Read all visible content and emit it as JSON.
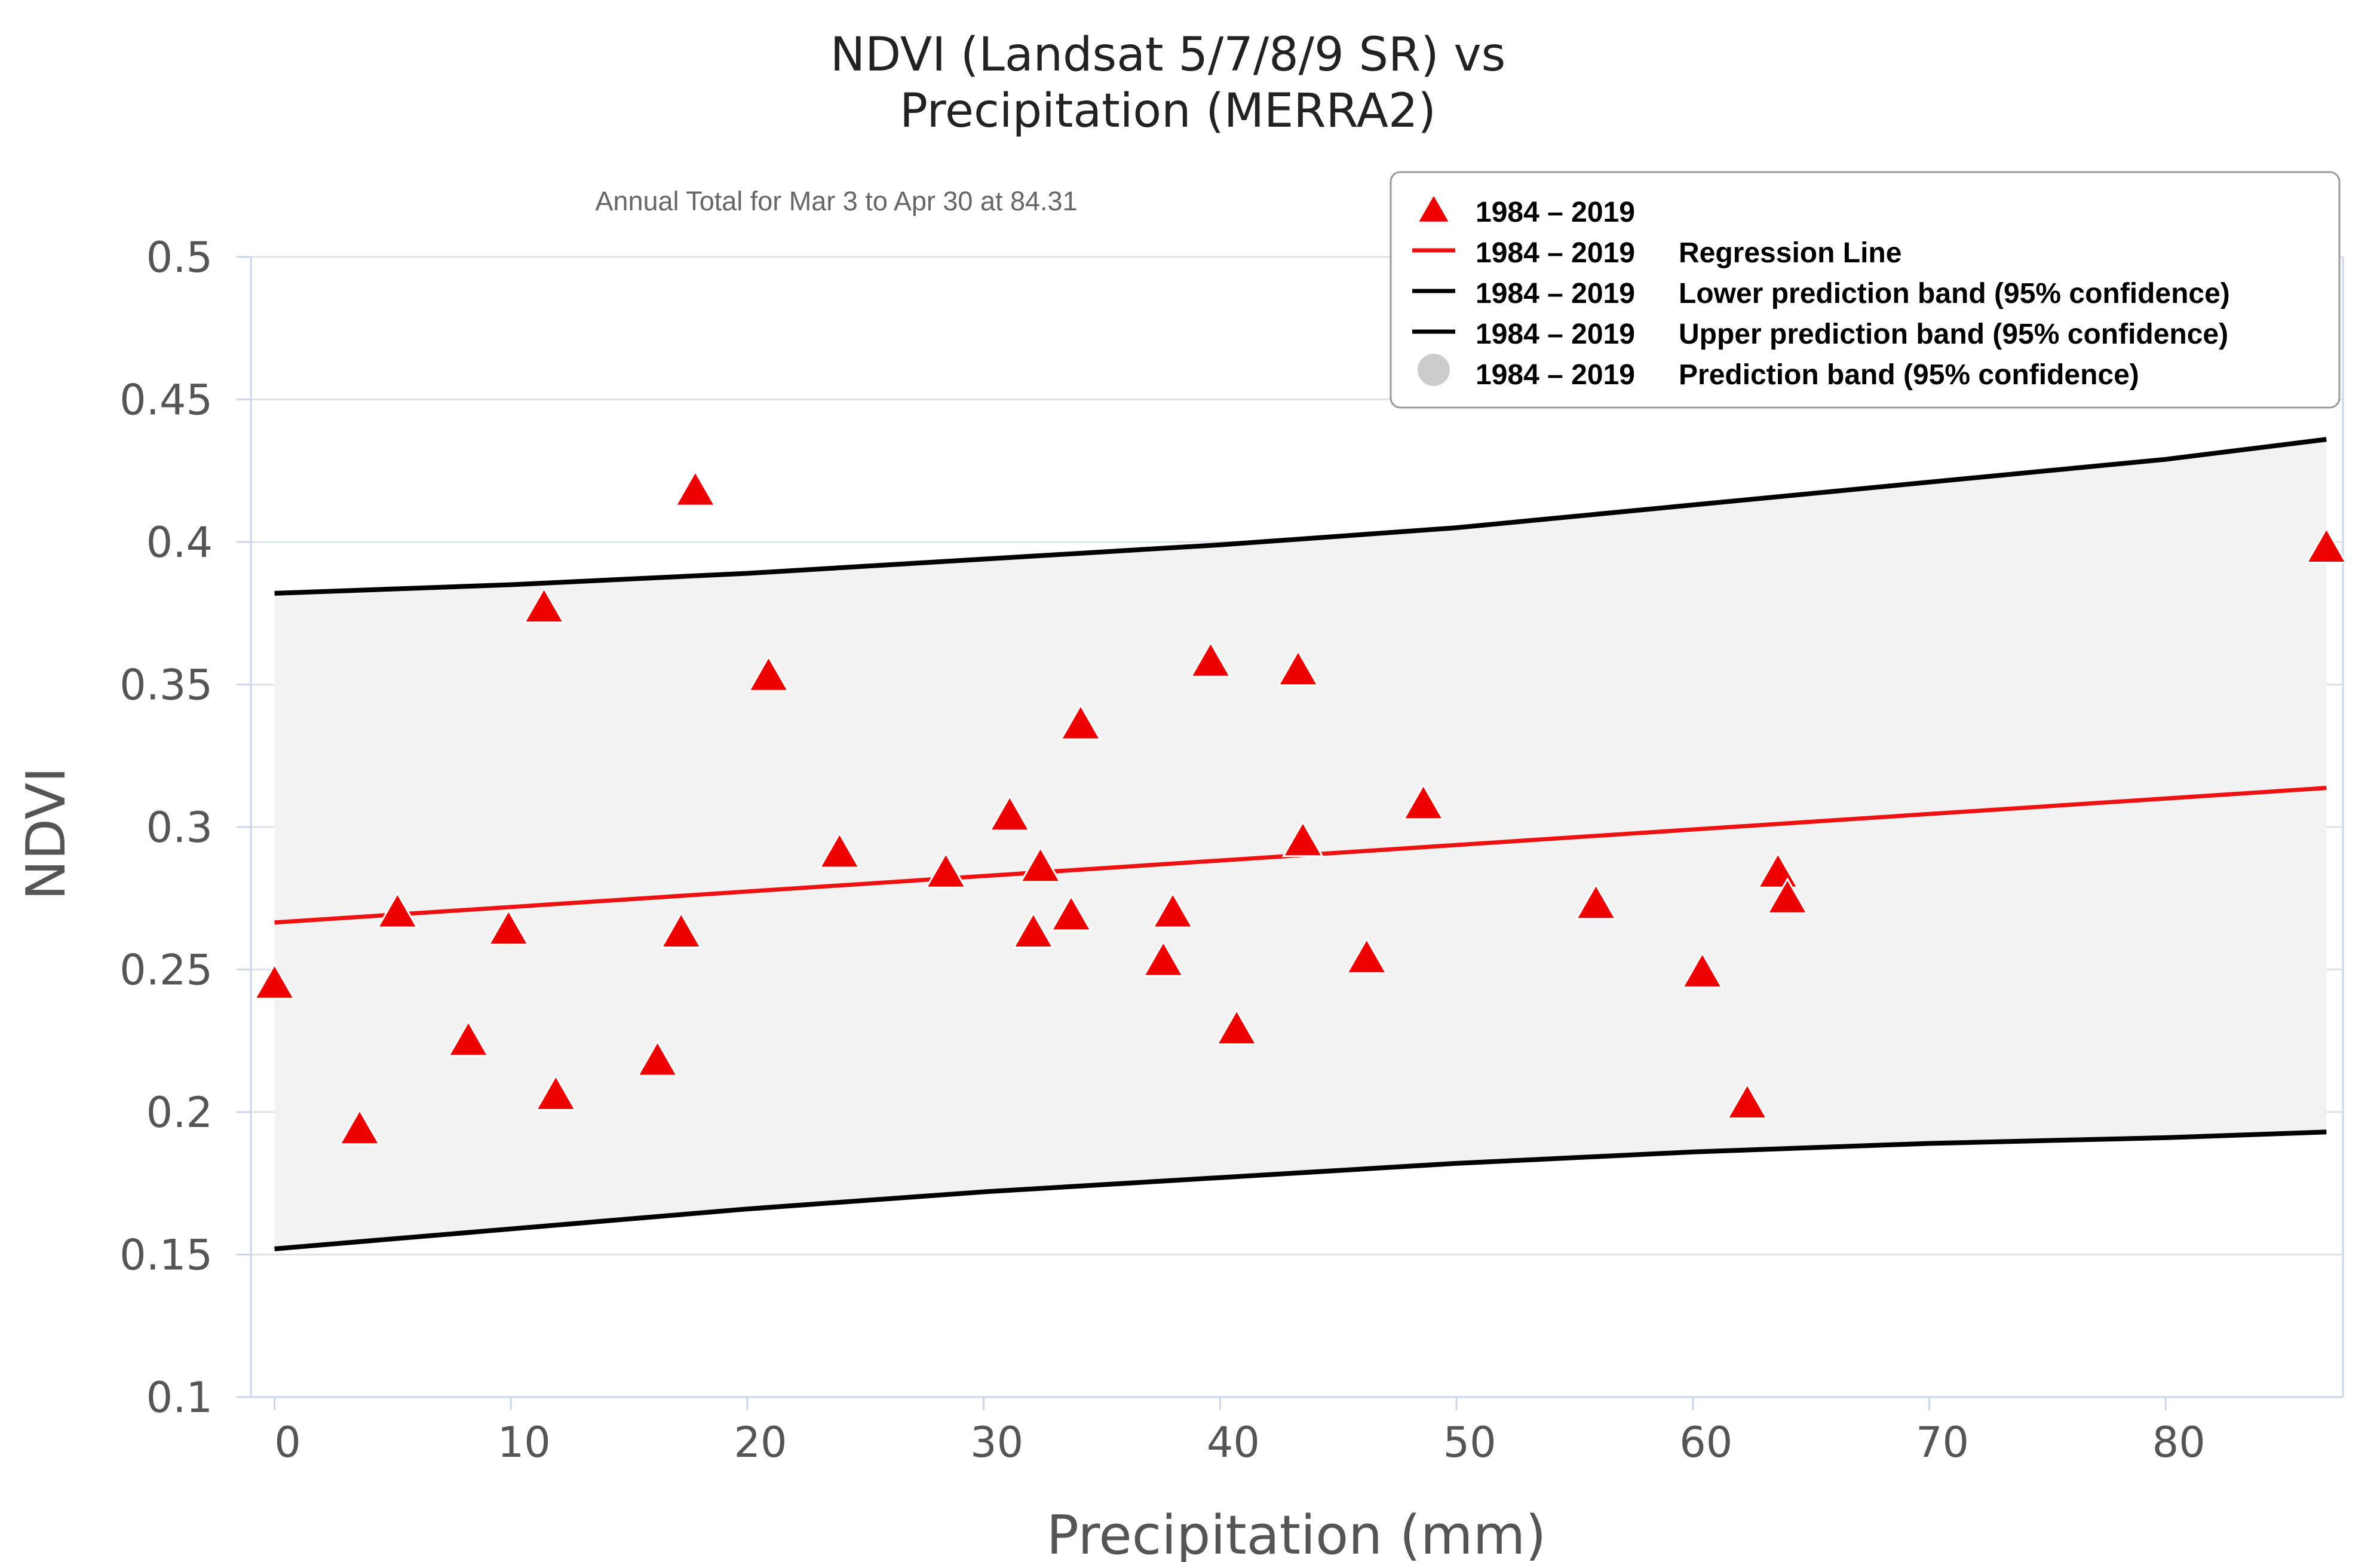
{
  "chart_data": {
    "type": "scatter",
    "title_lines": [
      "NDVI (Landsat 5/7/8/9 SR) vs",
      "Precipitation (MERRA2)"
    ],
    "subtitle": "Annual Total for Mar 3 to Apr 30 at 84.31",
    "xlabel": "Precipitation (mm)",
    "ylabel": "NDVI",
    "xlim": [
      -1,
      87.5
    ],
    "ylim": [
      0.1,
      0.5
    ],
    "x_ticks": [
      {
        "value": 0,
        "label": "0"
      },
      {
        "value": 10,
        "label": "10"
      },
      {
        "value": 20,
        "label": "20"
      },
      {
        "value": 30,
        "label": "30"
      },
      {
        "value": 40,
        "label": "40"
      },
      {
        "value": 50,
        "label": "50"
      },
      {
        "value": 60,
        "label": "60"
      },
      {
        "value": 70,
        "label": "70"
      },
      {
        "value": 80,
        "label": "80"
      }
    ],
    "y_ticks": [
      {
        "value": 0.1,
        "label": "0.1"
      },
      {
        "value": 0.15,
        "label": "0.15"
      },
      {
        "value": 0.2,
        "label": "0.2"
      },
      {
        "value": 0.25,
        "label": "0.25"
      },
      {
        "value": 0.3,
        "label": "0.3"
      },
      {
        "value": 0.35,
        "label": "0.35"
      },
      {
        "value": 0.4,
        "label": "0.4"
      },
      {
        "value": 0.45,
        "label": "0.45"
      },
      {
        "value": 0.5,
        "label": "0.5"
      }
    ],
    "grid": true,
    "colors": {
      "points": "#ee0000",
      "regression": "#ee1111",
      "bands": "#000000",
      "band_fill": "#f2f2f2",
      "band_legend": "#cccccc",
      "grid": "#dde3ea"
    },
    "points": [
      {
        "x": 0.0,
        "y": 0.245
      },
      {
        "x": 3.6,
        "y": 0.194
      },
      {
        "x": 5.2,
        "y": 0.27
      },
      {
        "x": 8.2,
        "y": 0.225
      },
      {
        "x": 9.9,
        "y": 0.264
      },
      {
        "x": 11.4,
        "y": 0.377
      },
      {
        "x": 11.9,
        "y": 0.206
      },
      {
        "x": 16.2,
        "y": 0.218
      },
      {
        "x": 17.2,
        "y": 0.263
      },
      {
        "x": 17.8,
        "y": 0.418
      },
      {
        "x": 20.9,
        "y": 0.353
      },
      {
        "x": 23.9,
        "y": 0.291
      },
      {
        "x": 28.4,
        "y": 0.284
      },
      {
        "x": 31.1,
        "y": 0.304
      },
      {
        "x": 32.1,
        "y": 0.263
      },
      {
        "x": 32.4,
        "y": 0.286
      },
      {
        "x": 33.7,
        "y": 0.269
      },
      {
        "x": 34.1,
        "y": 0.336
      },
      {
        "x": 37.6,
        "y": 0.253
      },
      {
        "x": 38.0,
        "y": 0.27
      },
      {
        "x": 39.6,
        "y": 0.358
      },
      {
        "x": 40.7,
        "y": 0.229
      },
      {
        "x": 43.3,
        "y": 0.355
      },
      {
        "x": 43.5,
        "y": 0.295
      },
      {
        "x": 46.2,
        "y": 0.254
      },
      {
        "x": 48.6,
        "y": 0.308
      },
      {
        "x": 55.9,
        "y": 0.273
      },
      {
        "x": 60.4,
        "y": 0.249
      },
      {
        "x": 62.3,
        "y": 0.203
      },
      {
        "x": 63.6,
        "y": 0.284
      },
      {
        "x": 64.0,
        "y": 0.275
      },
      {
        "x": 86.8,
        "y": 0.398
      }
    ],
    "regression_line": [
      {
        "x": 0,
        "y": 0.2665
      },
      {
        "x": 86.8,
        "y": 0.3137
      }
    ],
    "upper_band": [
      {
        "x": 0,
        "y": 0.382
      },
      {
        "x": 10,
        "y": 0.385
      },
      {
        "x": 20,
        "y": 0.389
      },
      {
        "x": 30,
        "y": 0.394
      },
      {
        "x": 40,
        "y": 0.399
      },
      {
        "x": 50,
        "y": 0.405
      },
      {
        "x": 60,
        "y": 0.413
      },
      {
        "x": 70,
        "y": 0.421
      },
      {
        "x": 80,
        "y": 0.429
      },
      {
        "x": 86.8,
        "y": 0.436
      }
    ],
    "lower_band": [
      {
        "x": 0,
        "y": 0.152
      },
      {
        "x": 10,
        "y": 0.159
      },
      {
        "x": 20,
        "y": 0.166
      },
      {
        "x": 30,
        "y": 0.172
      },
      {
        "x": 40,
        "y": 0.177
      },
      {
        "x": 50,
        "y": 0.182
      },
      {
        "x": 60,
        "y": 0.186
      },
      {
        "x": 70,
        "y": 0.189
      },
      {
        "x": 80,
        "y": 0.191
      },
      {
        "x": 86.8,
        "y": 0.193
      }
    ],
    "legend": {
      "position": "top-right",
      "entries": [
        {
          "marker": "triangle",
          "years": "1984 – 2019",
          "label": ""
        },
        {
          "marker": "red-line",
          "years": "1984 – 2019",
          "label": "Regression Line"
        },
        {
          "marker": "black-line",
          "years": "1984 – 2019",
          "label": "Lower prediction band (95% confidence)"
        },
        {
          "marker": "black-line",
          "years": "1984 – 2019",
          "label": "Upper prediction band (95% confidence)"
        },
        {
          "marker": "gray-circle",
          "years": "1984 – 2019",
          "label": "Prediction band (95% confidence)"
        }
      ]
    }
  }
}
